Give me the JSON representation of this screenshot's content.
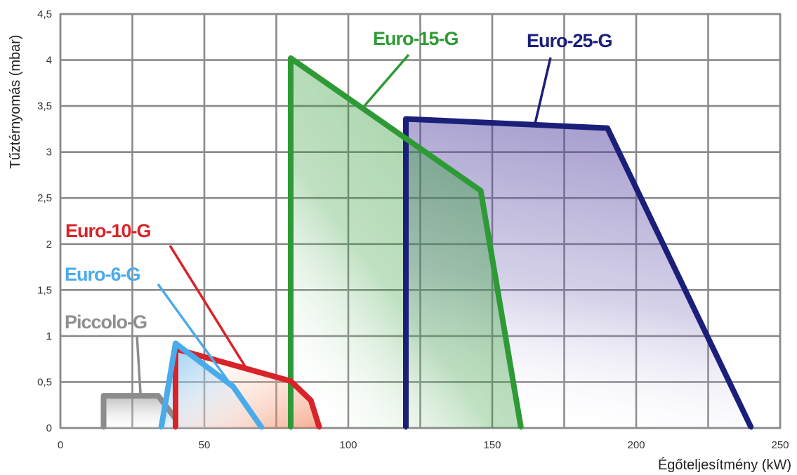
{
  "chart_data": {
    "type": "area",
    "xlabel": "Égőteljesítmény (kW)",
    "ylabel": "Tűztérnyomás (mbar)",
    "xlim": [
      0,
      250
    ],
    "ylim": [
      0,
      4.5
    ],
    "grid": true,
    "x_ticks": [
      0,
      50,
      100,
      150,
      200,
      250
    ],
    "x_tick_labels": [
      "0",
      "50",
      "100",
      "150",
      "200",
      "250"
    ],
    "y_ticks": [
      0,
      0.5,
      1,
      1.5,
      2,
      2.5,
      3,
      3.5,
      4,
      4.5
    ],
    "y_tick_labels": [
      "0",
      "0,5",
      "1",
      "1,5",
      "2",
      "2,5",
      "3",
      "3,5",
      "4",
      "4,5"
    ],
    "series": [
      {
        "name": "Piccolo-G",
        "color": "#8c8c8c",
        "label_color": "#8f8f8f",
        "points": [
          [
            15,
            0
          ],
          [
            15,
            0.35
          ],
          [
            34,
            0.35
          ],
          [
            40,
            0.1
          ]
        ],
        "label_position": "left-low"
      },
      {
        "name": "Euro-6-G",
        "color": "#4aabea",
        "label_color": "#4aabea",
        "points": [
          [
            35,
            0
          ],
          [
            40,
            0.92
          ],
          [
            60,
            0.45
          ],
          [
            70,
            0
          ]
        ],
        "label_position": "left-mid"
      },
      {
        "name": "Euro-10-G",
        "color": "#d8232a",
        "label_color": "#d8232a",
        "points": [
          [
            40,
            0
          ],
          [
            40,
            0.86
          ],
          [
            80,
            0.51
          ],
          [
            87,
            0.3
          ],
          [
            90,
            0
          ]
        ],
        "label_position": "left-upper"
      },
      {
        "name": "Euro-15-G",
        "color": "#2e9a35",
        "label_color": "#2e9a35",
        "points": [
          [
            80,
            0
          ],
          [
            80,
            4.02
          ],
          [
            146,
            2.58
          ],
          [
            160,
            0
          ]
        ],
        "label_position": "top-center"
      },
      {
        "name": "Euro-25-G",
        "color": "#1b1f7a",
        "label_color": "#1b1f7a",
        "points": [
          [
            120,
            0
          ],
          [
            120,
            3.36
          ],
          [
            190,
            3.26
          ],
          [
            240,
            0
          ]
        ],
        "label_position": "top-right"
      }
    ]
  }
}
